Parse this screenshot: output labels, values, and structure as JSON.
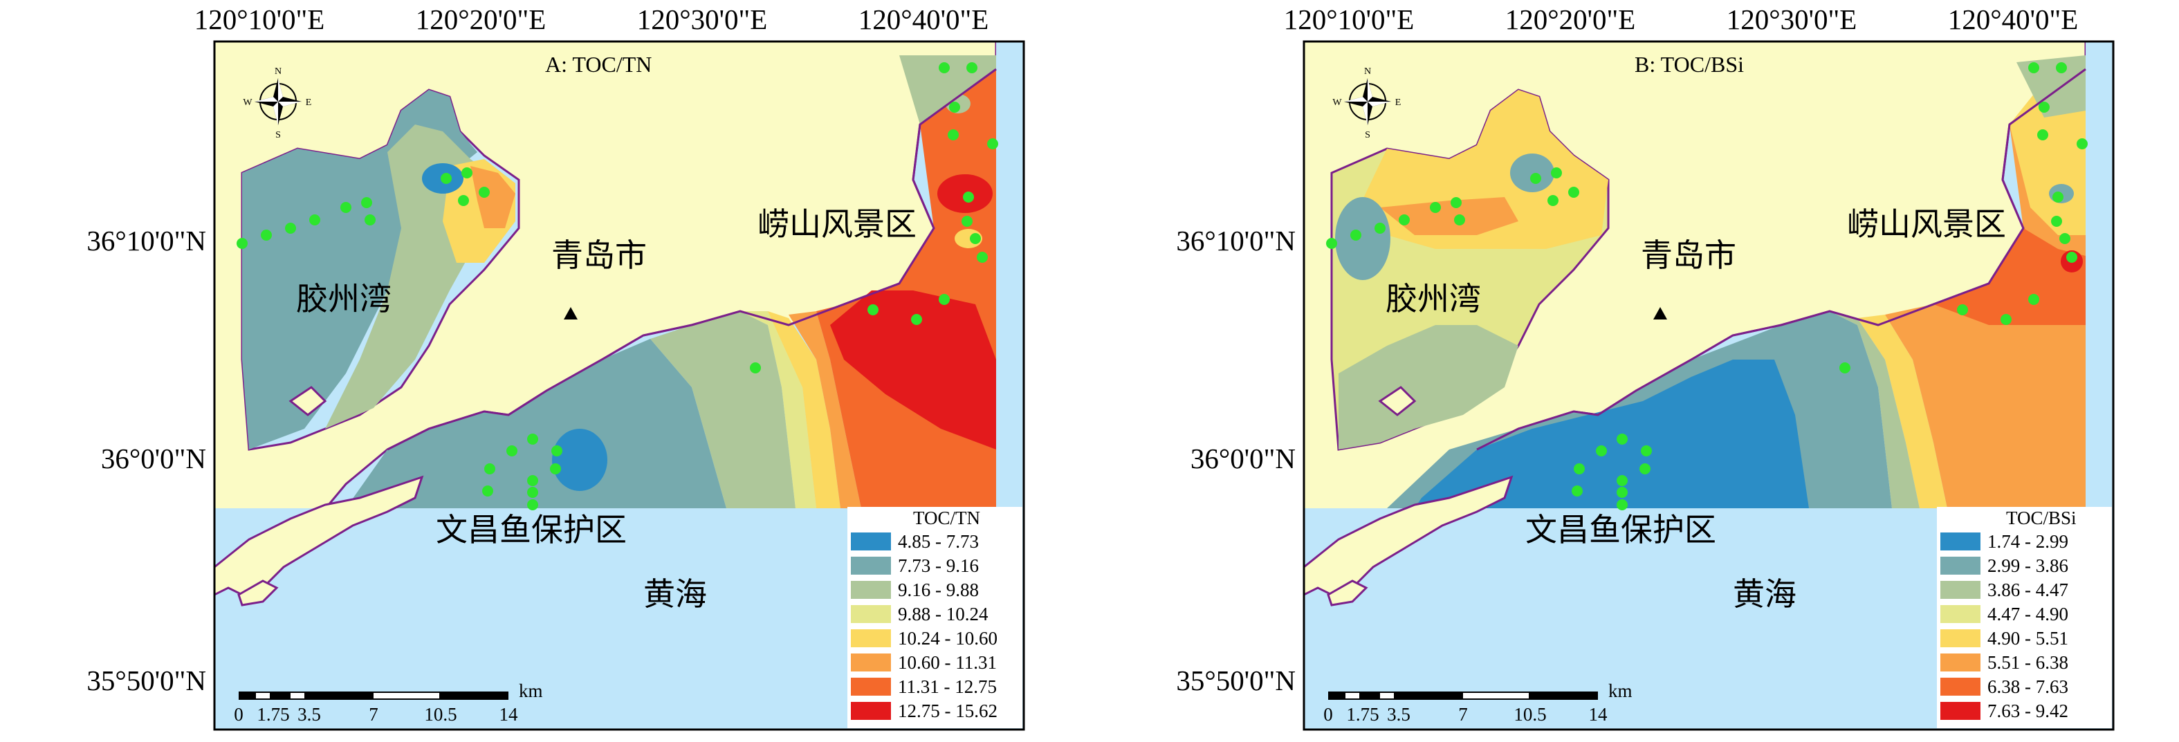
{
  "colors": {
    "sea": "#bfe6fa",
    "land": "#fbfbc5",
    "coast": "#7b1f8a",
    "station": "#2de52d",
    "frame": "#000000"
  },
  "axes": {
    "lon_ticks": [
      "120°10'0\"E",
      "120°20'0\"E",
      "120°30'0\"E",
      "120°40'0\"E"
    ],
    "lat_ticks": [
      "36°10'0\"N",
      "36°0'0\"N",
      "35°50'0\"N"
    ]
  },
  "place_names": {
    "qingdao": "青岛市",
    "laoshan": "崂山风景区",
    "jiaozhou_bay": "胶州湾",
    "wenchang": "文昌鱼保护区",
    "yellow_sea": "黄海"
  },
  "north_arrow": {
    "n": "N",
    "s": "S",
    "e": "E",
    "w": "W"
  },
  "scale_bar": {
    "labels": [
      "0",
      "1.75",
      "3.5",
      "7",
      "10.5",
      "14"
    ],
    "unit": "km"
  },
  "panels": [
    {
      "id": "A",
      "title": "A: TOC/TN",
      "legend_title": "TOC/TN",
      "classes": [
        {
          "range": "4.85 - 7.73",
          "color": "#2b8dc6"
        },
        {
          "range": "7.73 - 9.16",
          "color": "#76aaae"
        },
        {
          "range": "9.16 - 9.88",
          "color": "#aec79a"
        },
        {
          "range": "9.88 - 10.24",
          "color": "#e4e78c"
        },
        {
          "range": "10.24 - 10.60",
          "color": "#fbd960"
        },
        {
          "range": "10.60 - 11.31",
          "color": "#f9a147"
        },
        {
          "range": "11.31 - 12.75",
          "color": "#f4692b"
        },
        {
          "range": "12.75 - 15.62",
          "color": "#e31a1c"
        }
      ]
    },
    {
      "id": "B",
      "title": "B: TOC/BSi",
      "legend_title": "TOC/BSi",
      "classes": [
        {
          "range": "1.74 - 2.99",
          "color": "#2b8dc6"
        },
        {
          "range": "2.99 - 3.86",
          "color": "#76aaae"
        },
        {
          "range": "3.86 - 4.47",
          "color": "#aec79a"
        },
        {
          "range": "4.47 - 4.90",
          "color": "#e4e78c"
        },
        {
          "range": "4.90 - 5.51",
          "color": "#fbd960"
        },
        {
          "range": "5.51 - 6.38",
          "color": "#f9a147"
        },
        {
          "range": "6.38 - 7.63",
          "color": "#f4692b"
        },
        {
          "range": "7.63 - 9.42",
          "color": "#e31a1c"
        }
      ]
    }
  ]
}
